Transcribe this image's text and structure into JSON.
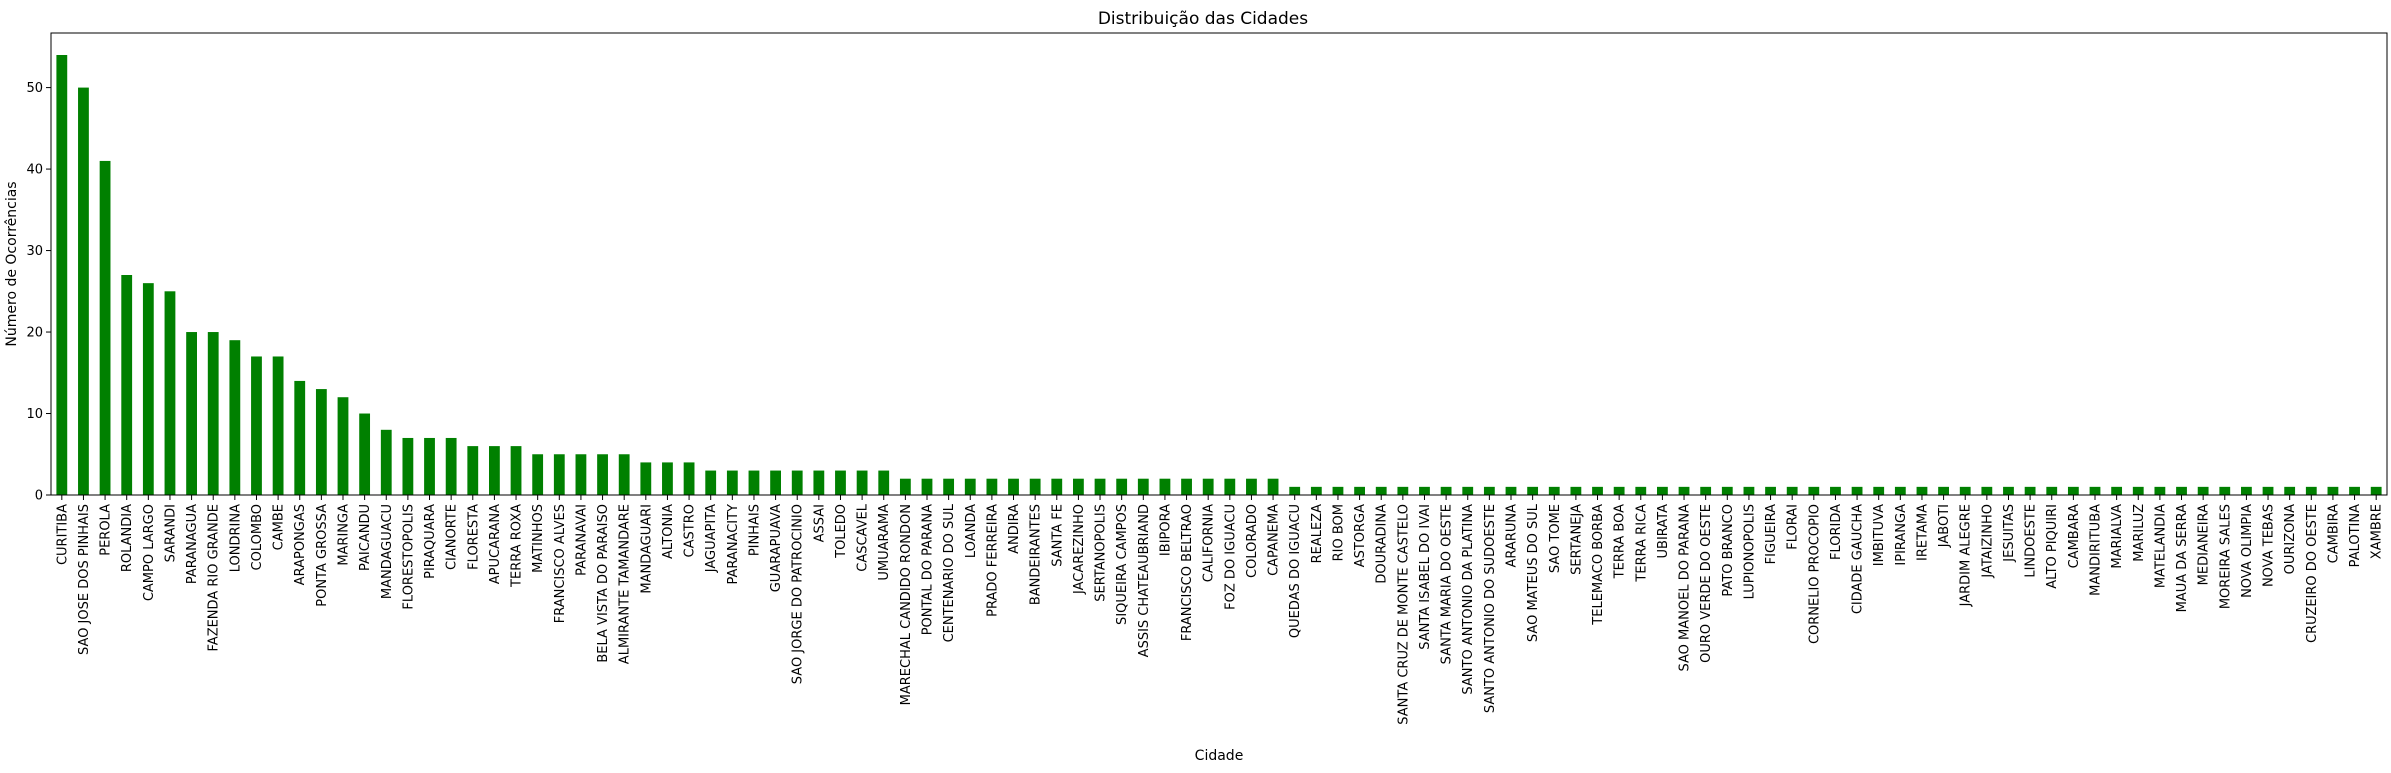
{
  "chart_data": {
    "type": "bar",
    "title": "Distribuição das Cidades",
    "xlabel": "Cidade",
    "ylabel": "Número de Ocorrências",
    "ylim": [
      0,
      56.7
    ],
    "yticks": [
      0,
      10,
      20,
      30,
      40,
      50
    ],
    "bar_color": "#008000",
    "grid": false,
    "categories": [
      "CURITIBA",
      "SAO JOSE DOS PINHAIS",
      "PEROLA",
      "ROLANDIA",
      "CAMPO LARGO",
      "SARANDI",
      "PARANAGUA",
      "FAZENDA RIO GRANDE",
      "LONDRINA",
      "COLOMBO",
      "CAMBE",
      "ARAPONGAS",
      "PONTA GROSSA",
      "MARINGA",
      "PAICANDU",
      "MANDAGUACU",
      "FLORESTOPOLIS",
      "PIRAQUARA",
      "CIANORTE",
      "FLORESTA",
      "APUCARANA",
      "TERRA ROXA",
      "MATINHOS",
      "FRANCISCO ALVES",
      "PARANAVAI",
      "BELA VISTA DO PARAISO",
      "ALMIRANTE TAMANDARE",
      "MANDAGUARI",
      "ALTONIA",
      "CASTRO",
      "JAGUAPITA",
      "PARANACITY",
      "PINHAIS",
      "GUARAPUAVA",
      "SAO JORGE DO PATROCINIO",
      "ASSAI",
      "TOLEDO",
      "CASCAVEL",
      "UMUARAMA",
      "MARECHAL CANDIDO RONDON",
      "PONTAL DO PARANA",
      "CENTENARIO DO SUL",
      "LOANDA",
      "PRADO FERREIRA",
      "ANDIRA",
      "BANDEIRANTES",
      "SANTA FE",
      "JACAREZINHO",
      "SERTANOPOLIS",
      "SIQUEIRA CAMPOS",
      "ASSIS CHATEAUBRIAND",
      "IBIPORA",
      "FRANCISCO BELTRAO",
      "CALIFORNIA",
      "FOZ DO IGUACU",
      "COLORADO",
      "CAPANEMA",
      "QUEDAS DO IGUACU",
      "REALEZA",
      "RIO BOM",
      "ASTORGA",
      "DOURADINA",
      "SANTA CRUZ DE MONTE CASTELO",
      "SANTA ISABEL DO IVAI",
      "SANTA MARIA DO OESTE",
      "SANTO ANTONIO DA PLATINA",
      "SANTO ANTONIO DO SUDOESTE",
      "ARARUNA",
      "SAO MATEUS DO SUL",
      "SAO TOME",
      "SERTANEJA",
      "TELEMACO BORBA",
      "TERRA BOA",
      "TERRA RICA",
      "UBIRATA",
      "SAO MANOEL DO PARANA",
      "OURO VERDE DO OESTE",
      "PATO BRANCO",
      "LUPIONOPOLIS",
      "FIGUEIRA",
      "FLORAI",
      "CORNELIO PROCOPIO",
      "FLORIDA",
      "CIDADE GAUCHA",
      "IMBITUVA",
      "IPIRANGA",
      "IRETAMA",
      "JABOTI",
      "JARDIM ALEGRE",
      "JATAIZINHO",
      "JESUITAS",
      "LINDOESTE",
      "ALTO PIQUIRI",
      "CAMBARA",
      "MANDIRITUBA",
      "MARIALVA",
      "MARILUZ",
      "MATELANDIA",
      "MAUA DA SERRA",
      "MEDIANEIRA",
      "MOREIRA SALES",
      "NOVA OLIMPIA",
      "NOVA TEBAS",
      "OURIZONA",
      "CRUZEIRO DO OESTE",
      "CAMBIRA",
      "PALOTINA",
      "XAMBRE"
    ],
    "values": [
      54,
      50,
      41,
      27,
      26,
      25,
      20,
      20,
      19,
      17,
      17,
      14,
      13,
      12,
      10,
      8,
      7,
      7,
      7,
      6,
      6,
      6,
      5,
      5,
      5,
      5,
      5,
      4,
      4,
      4,
      3,
      3,
      3,
      3,
      3,
      3,
      3,
      3,
      3,
      2,
      2,
      2,
      2,
      2,
      2,
      2,
      2,
      2,
      2,
      2,
      2,
      2,
      2,
      2,
      2,
      2,
      2,
      1,
      1,
      1,
      1,
      1,
      1,
      1,
      1,
      1,
      1,
      1,
      1,
      1,
      1,
      1,
      1,
      1,
      1,
      1,
      1,
      1,
      1,
      1,
      1,
      1,
      1,
      1,
      1,
      1,
      1,
      1,
      1,
      1,
      1,
      1,
      1,
      1,
      1,
      1,
      1,
      1,
      1,
      1,
      1,
      1,
      1,
      1,
      1,
      1,
      1,
      1
    ]
  }
}
